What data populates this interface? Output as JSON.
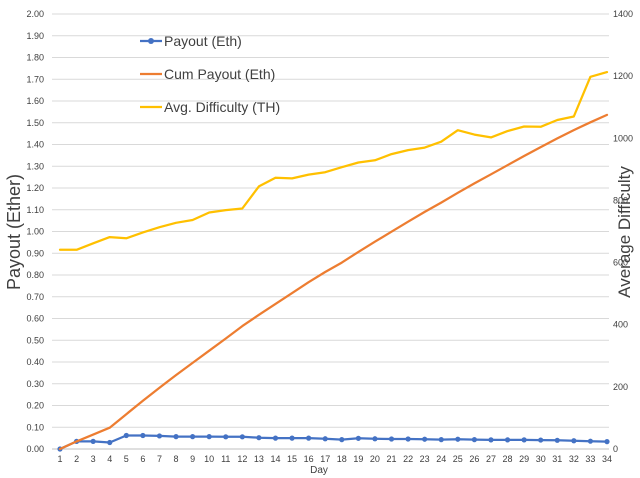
{
  "chart_data": {
    "type": "line",
    "xlabel": "Day",
    "ylabel": "Payout (Ether)",
    "y2label": "Average Difficulty",
    "ylim": [
      0,
      2
    ],
    "y2lim": [
      0,
      1400
    ],
    "x": [
      1,
      2,
      3,
      4,
      5,
      6,
      7,
      8,
      9,
      10,
      11,
      12,
      13,
      14,
      15,
      16,
      17,
      18,
      19,
      20,
      21,
      22,
      23,
      24,
      25,
      26,
      27,
      28,
      29,
      30,
      31,
      32,
      33,
      34
    ],
    "x_tick_labels": [
      "1",
      "2",
      "3",
      "4",
      "5",
      "6",
      "7",
      "8",
      "9",
      "10",
      "11",
      "12",
      "13",
      "14",
      "15",
      "16",
      "17",
      "18",
      "19",
      "20",
      "21",
      "22",
      "23",
      "24",
      "25",
      "26",
      "27",
      "28",
      "29",
      "30",
      "31",
      "32",
      "33",
      "34"
    ],
    "y_tick_labels": [
      "0.00",
      "0.10",
      "0.20",
      "0.30",
      "0.40",
      "0.50",
      "0.60",
      "0.70",
      "0.80",
      "0.90",
      "1.00",
      "1.10",
      "1.20",
      "1.30",
      "1.40",
      "1.50",
      "1.60",
      "1.70",
      "1.80",
      "1.90",
      "2.00"
    ],
    "y2_tick_labels": [
      "0",
      "200",
      "400",
      "600",
      "800",
      "1000",
      "1200",
      "1400"
    ],
    "grid": true,
    "legend": "top-left",
    "series": [
      {
        "name": "Payout (Eth)",
        "axis": "left",
        "color": "#4472c4",
        "markers": true,
        "values": [
          0.0,
          0.035,
          0.035,
          0.03,
          0.062,
          0.062,
          0.06,
          0.057,
          0.057,
          0.057,
          0.056,
          0.056,
          0.052,
          0.05,
          0.05,
          0.05,
          0.047,
          0.043,
          0.049,
          0.047,
          0.046,
          0.046,
          0.045,
          0.043,
          0.045,
          0.043,
          0.042,
          0.042,
          0.042,
          0.041,
          0.04,
          0.038,
          0.036,
          0.034
        ]
      },
      {
        "name": "Cum Payout (Eth)",
        "axis": "left",
        "color": "#ed7d31",
        "markers": false,
        "values": [
          0.0,
          0.035,
          0.066,
          0.098,
          0.16,
          0.222,
          0.282,
          0.34,
          0.396,
          0.452,
          0.508,
          0.565,
          0.617,
          0.667,
          0.717,
          0.767,
          0.814,
          0.857,
          0.906,
          0.953,
          0.999,
          1.045,
          1.09,
          1.133,
          1.178,
          1.221,
          1.263,
          1.305,
          1.347,
          1.388,
          1.428,
          1.466,
          1.502,
          1.536
        ]
      },
      {
        "name": "Avg. Difficulty (TH)",
        "axis": "right",
        "color": "#ffc000",
        "markers": false,
        "values": [
          641,
          641,
          662,
          682,
          678,
          697,
          714,
          728,
          737,
          761,
          769,
          774,
          845,
          873,
          871,
          883,
          891,
          907,
          922,
          929,
          949,
          962,
          970,
          989,
          1026,
          1012,
          1003,
          1023,
          1038,
          1037,
          1059,
          1070,
          1198,
          1213
        ]
      }
    ]
  }
}
